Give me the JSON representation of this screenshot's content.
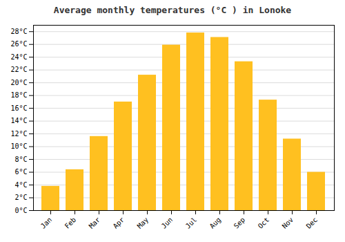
{
  "chart_data": {
    "type": "bar",
    "title": "Average monthly temperatures (°C ) in Lonoke",
    "categories": [
      "Jan",
      "Feb",
      "Mar",
      "Apr",
      "May",
      "Jun",
      "Jul",
      "Aug",
      "Sep",
      "Oct",
      "Nov",
      "Dec"
    ],
    "values": [
      3.8,
      6.4,
      11.6,
      17.0,
      21.2,
      25.9,
      27.8,
      27.1,
      23.3,
      17.3,
      11.2,
      6.0
    ],
    "color": "#FFC020",
    "ylim": [
      0,
      29
    ],
    "yticks": [
      {
        "value": 0,
        "label": "0°C"
      },
      {
        "value": 2,
        "label": "2°C"
      },
      {
        "value": 4,
        "label": "4°C"
      },
      {
        "value": 6,
        "label": "6°C"
      },
      {
        "value": 8,
        "label": "8°C"
      },
      {
        "value": 10,
        "label": "10°C"
      },
      {
        "value": 12,
        "label": "12°C"
      },
      {
        "value": 14,
        "label": "14°C"
      },
      {
        "value": 16,
        "label": "16°C"
      },
      {
        "value": 18,
        "label": "18°C"
      },
      {
        "value": 20,
        "label": "20°C"
      },
      {
        "value": 22,
        "label": "22°C"
      },
      {
        "value": 24,
        "label": "24°C"
      },
      {
        "value": 26,
        "label": "26°C"
      },
      {
        "value": 28,
        "label": "28°C"
      }
    ],
    "grid": true
  }
}
